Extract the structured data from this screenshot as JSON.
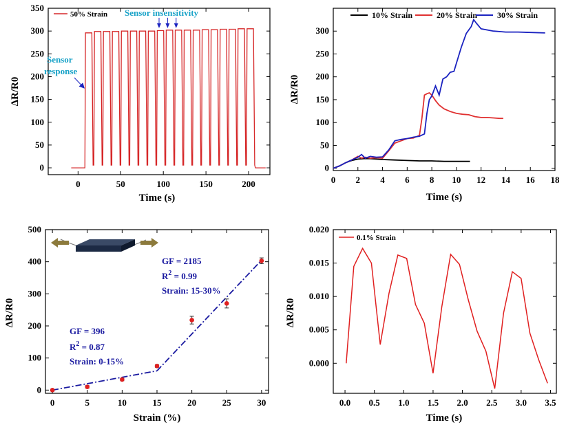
{
  "chart_data": [
    {
      "type": "line",
      "xlabel": "Time (s)",
      "ylabel": "ΔR/R0",
      "xlim": [
        -35,
        225
      ],
      "ylim": [
        -15,
        350
      ],
      "xticks": [
        0,
        50,
        100,
        150,
        200
      ],
      "yticks": [
        0,
        50,
        100,
        150,
        200,
        250,
        300,
        350
      ],
      "legend_position": "top-left",
      "series": [
        {
          "name": "50% Strain",
          "color": "#d62728",
          "cycles": 19,
          "x_start": 8,
          "x_end": 208,
          "base": 0,
          "peaks": [
            296,
            299,
            299,
            299,
            300,
            300,
            300,
            300,
            301,
            302,
            302,
            302,
            302,
            303,
            303,
            304,
            304,
            305,
            305
          ]
        }
      ],
      "annotations": [
        {
          "text": "Sensor insensitivity",
          "color": "#1aa3c8",
          "arrows_x": [
            95,
            105,
            115
          ],
          "arrow_y": 302
        },
        {
          "text": "Sensor",
          "color": "#1aa3c8"
        },
        {
          "text": "response",
          "color": "#1aa3c8",
          "arrow_to": [
            8,
            175
          ]
        }
      ]
    },
    {
      "type": "line",
      "xlabel": "Time (s)",
      "ylabel": "ΔR/R0",
      "xlim": [
        0,
        18
      ],
      "ylim": [
        -5,
        350
      ],
      "xticks": [
        0,
        2,
        4,
        6,
        8,
        10,
        12,
        14,
        16,
        18
      ],
      "yticks": [
        0,
        50,
        100,
        150,
        200,
        250,
        300
      ],
      "legend_position": "top",
      "series": [
        {
          "name": "10% Strain",
          "color": "#000000",
          "x": [
            0,
            0.5,
            1,
            1.5,
            2,
            2.5,
            3,
            3.5,
            4,
            5,
            6,
            7,
            8,
            9,
            10,
            11.1
          ],
          "y": [
            0,
            5,
            12,
            17,
            20,
            21,
            21,
            20,
            19,
            18,
            17,
            16,
            16,
            15,
            15,
            15
          ]
        },
        {
          "name": "20% Strain",
          "color": "#e03030",
          "x": [
            0,
            0.5,
            1,
            1.5,
            2,
            2.3,
            2.6,
            3,
            3.5,
            4,
            4.5,
            5,
            5.5,
            6,
            6.5,
            7,
            7.2,
            7.4,
            7.6,
            7.8,
            8,
            8.3,
            8.6,
            9,
            9.5,
            10,
            10.5,
            11,
            11.5,
            12,
            12.5,
            13,
            13.5,
            13.8
          ],
          "y": [
            0,
            5,
            12,
            18,
            26,
            22,
            24,
            22,
            23,
            22,
            38,
            55,
            60,
            65,
            66,
            72,
            110,
            160,
            163,
            165,
            160,
            148,
            138,
            130,
            124,
            120,
            118,
            117,
            113,
            111,
            111,
            110,
            109,
            109
          ]
        },
        {
          "name": "30% Strain",
          "color": "#1a22c0",
          "x": [
            0,
            0.5,
            1,
            1.5,
            2,
            2.3,
            2.6,
            3,
            3.5,
            4,
            4.5,
            5,
            5.5,
            6,
            6.5,
            7,
            7.4,
            7.6,
            7.8,
            8,
            8.3,
            8.6,
            8.9,
            9.2,
            9.5,
            9.8,
            10,
            10.4,
            10.8,
            11.2,
            11.4,
            11.6,
            12,
            13,
            14,
            15,
            16,
            17.2
          ],
          "y": [
            0,
            5,
            12,
            18,
            24,
            30,
            22,
            26,
            24,
            25,
            40,
            60,
            63,
            65,
            68,
            70,
            75,
            120,
            150,
            158,
            180,
            160,
            195,
            200,
            210,
            212,
            230,
            265,
            295,
            310,
            325,
            318,
            305,
            300,
            298,
            298,
            297,
            296
          ]
        }
      ]
    },
    {
      "type": "scatter",
      "xlabel": "Strain (%)",
      "ylabel": "ΔR/R0",
      "xlim": [
        -1,
        31
      ],
      "ylim": [
        -10,
        500
      ],
      "xticks": [
        0,
        5,
        10,
        15,
        20,
        25,
        30
      ],
      "yticks": [
        0,
        100,
        200,
        300,
        400,
        500
      ],
      "points": {
        "x": [
          0,
          5,
          10,
          15,
          20,
          25,
          30
        ],
        "y": [
          0,
          10,
          33,
          75,
          218,
          270,
          403
        ],
        "err": [
          3,
          4,
          4,
          4,
          12,
          14,
          9
        ],
        "color": "#e02020"
      },
      "fits": [
        {
          "color": "#1a1aa0",
          "x": [
            0,
            15
          ],
          "y": [
            0,
            60
          ],
          "labels": [
            "GF = 396",
            "R",
            "2",
            " = 0.87",
            "Strain: 0-15%"
          ]
        },
        {
          "color": "#1a1aa0",
          "x": [
            15,
            30
          ],
          "y": [
            60,
            405
          ],
          "labels": [
            "GF = 2185",
            "R",
            "2",
            " = 0.99",
            "Strain: 15-30%"
          ]
        }
      ]
    },
    {
      "type": "line",
      "xlabel": "Time (s)",
      "ylabel": "ΔR/R0",
      "xlim": [
        -0.2,
        3.6
      ],
      "ylim": [
        -0.0045,
        0.02
      ],
      "xticks": [
        0.0,
        0.5,
        1.0,
        1.5,
        2.0,
        2.5,
        3.0,
        3.5
      ],
      "yticks": [
        0.0,
        0.005,
        0.01,
        0.015,
        0.02
      ],
      "ytick_labels": [
        "0.000",
        "0.005",
        "0.010",
        "0.015",
        "0.020"
      ],
      "xtick_labels": [
        "0.0",
        "0.5",
        "1.0",
        "1.5",
        "2.0",
        "2.5",
        "3.0",
        "3.5"
      ],
      "legend_position": "top-left",
      "series": [
        {
          "name": "0.1% Strain",
          "color": "#e02020",
          "x": [
            0.02,
            0.15,
            0.3,
            0.45,
            0.6,
            0.75,
            0.9,
            1.05,
            1.2,
            1.35,
            1.5,
            1.65,
            1.8,
            1.95,
            2.1,
            2.25,
            2.4,
            2.55,
            2.7,
            2.85,
            3.0,
            3.15,
            3.3,
            3.45
          ],
          "y": [
            0.0,
            0.0145,
            0.0172,
            0.015,
            0.0028,
            0.0105,
            0.0162,
            0.0157,
            0.0088,
            0.006,
            -0.0015,
            0.0085,
            0.0163,
            0.0148,
            0.0095,
            0.0048,
            0.0018,
            -0.0038,
            0.0075,
            0.0137,
            0.0127,
            0.0045,
            0.0005,
            -0.003
          ]
        }
      ]
    }
  ]
}
